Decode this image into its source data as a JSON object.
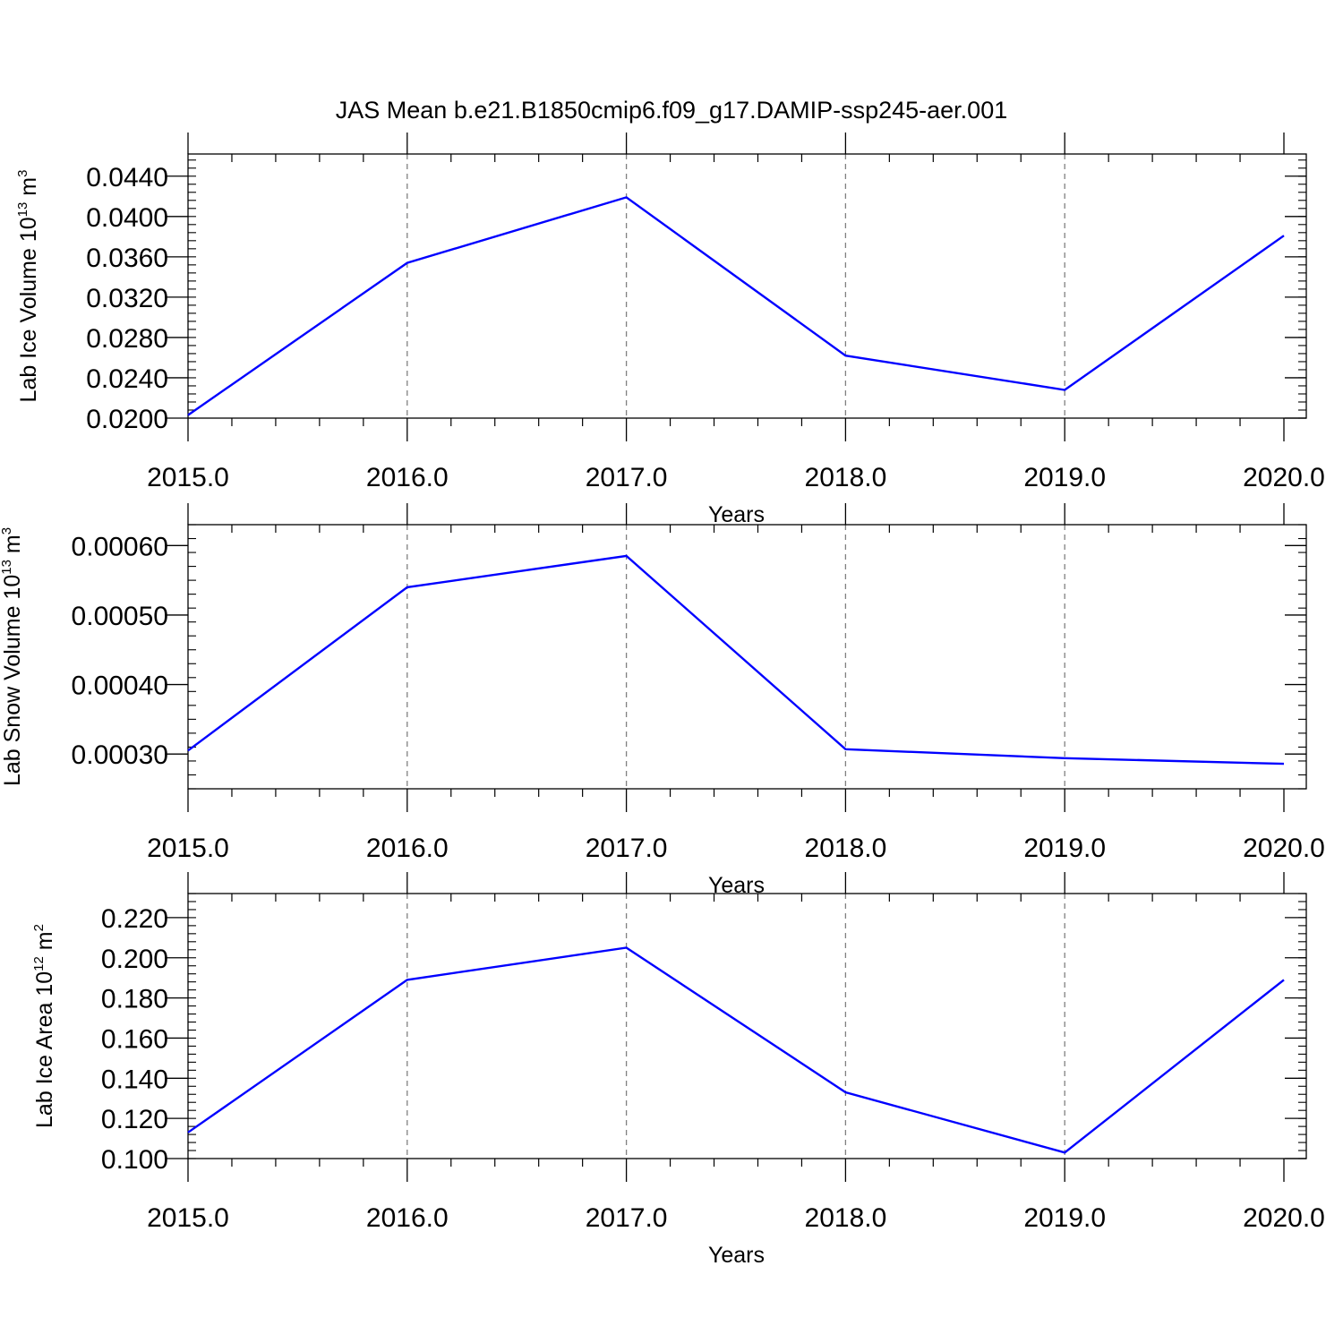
{
  "figure": {
    "title": "JAS Mean b.e21.B1850cmip6.f09_g17.DAMIP-ssp245-aer.001",
    "line_color": "#0000ff"
  },
  "chart_data": [
    {
      "type": "line",
      "title": "",
      "xlabel": "Years",
      "ylabel_main": "Lab Ice Volume 10",
      "ylabel_sup": "13",
      "ylabel_unit": " m",
      "ylabel_unit_sup": "3",
      "xlim": [
        2015,
        2020
      ],
      "ylim": [
        0.02,
        0.0462
      ],
      "x_ticks": [
        2015,
        2016,
        2017,
        2018,
        2019,
        2020
      ],
      "x_tick_labels": [
        "2015.0",
        "2016.0",
        "2017.0",
        "2018.0",
        "2019.0",
        "2020.0"
      ],
      "y_ticks": [
        0.02,
        0.024,
        0.028,
        0.032,
        0.036,
        0.04,
        0.044
      ],
      "y_tick_labels": [
        "0.0200",
        "0.0240",
        "0.0280",
        "0.0320",
        "0.0360",
        "0.0400",
        "0.0440"
      ],
      "y_minor_step": 0.0008,
      "x_minor_step": 0.2,
      "grid": "x-dashed",
      "series": [
        {
          "x": [
            2015,
            2016,
            2017,
            2018,
            2019,
            2020
          ],
          "values": [
            0.0203,
            0.0354,
            0.0419,
            0.0262,
            0.0228,
            0.0381
          ]
        }
      ]
    },
    {
      "type": "line",
      "title": "",
      "xlabel": "Years",
      "ylabel_main": "Lab Snow Volume 10",
      "ylabel_sup": "13",
      "ylabel_unit": " m",
      "ylabel_unit_sup": "3",
      "xlim": [
        2015,
        2020
      ],
      "ylim": [
        0.00025,
        0.00063
      ],
      "x_ticks": [
        2015,
        2016,
        2017,
        2018,
        2019,
        2020
      ],
      "x_tick_labels": [
        "2015.0",
        "2016.0",
        "2017.0",
        "2018.0",
        "2019.0",
        "2020.0"
      ],
      "y_ticks": [
        0.0003,
        0.0004,
        0.0005,
        0.0006
      ],
      "y_tick_labels": [
        "0.00030",
        "0.00040",
        "0.00050",
        "0.00060"
      ],
      "y_minor_step": 2e-05,
      "x_minor_step": 0.2,
      "grid": "x-dashed",
      "series": [
        {
          "x": [
            2015,
            2016,
            2017,
            2018,
            2019,
            2020
          ],
          "values": [
            0.000305,
            0.00054,
            0.000585,
            0.000307,
            0.000294,
            0.000286
          ]
        }
      ]
    },
    {
      "type": "line",
      "title": "",
      "xlabel": "Years",
      "ylabel_main": "Lab Ice Area 10",
      "ylabel_sup": "12",
      "ylabel_unit": " m",
      "ylabel_unit_sup": "2",
      "xlim": [
        2015,
        2020
      ],
      "ylim": [
        0.1,
        0.232
      ],
      "x_ticks": [
        2015,
        2016,
        2017,
        2018,
        2019,
        2020
      ],
      "x_tick_labels": [
        "2015.0",
        "2016.0",
        "2017.0",
        "2018.0",
        "2019.0",
        "2020.0"
      ],
      "y_ticks": [
        0.1,
        0.12,
        0.14,
        0.16,
        0.18,
        0.2,
        0.22
      ],
      "y_tick_labels": [
        "0.100",
        "0.120",
        "0.140",
        "0.160",
        "0.180",
        "0.200",
        "0.220"
      ],
      "y_minor_step": 0.004,
      "x_minor_step": 0.2,
      "grid": "x-dashed",
      "series": [
        {
          "x": [
            2015,
            2016,
            2017,
            2018,
            2019,
            2020
          ],
          "values": [
            0.113,
            0.189,
            0.205,
            0.133,
            0.103,
            0.189
          ]
        }
      ]
    }
  ]
}
